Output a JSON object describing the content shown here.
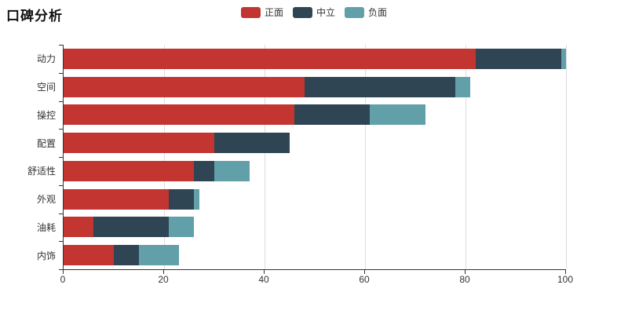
{
  "title": "口碑分析",
  "legend": [
    {
      "label": "正面",
      "color": "#c23531"
    },
    {
      "label": "中立",
      "color": "#2f4554"
    },
    {
      "label": "负面",
      "color": "#61a0a8"
    }
  ],
  "colors": {
    "positive": "#c23531",
    "neutral": "#2f4554",
    "negative": "#61a0a8",
    "axis_line": "#333333",
    "gridline": "#dcdce3",
    "background": "#ffffff"
  },
  "chart_data": {
    "type": "bar",
    "orientation": "horizontal",
    "stacked": true,
    "title": "口碑分析",
    "categories": [
      "动力",
      "空间",
      "操控",
      "配置",
      "舒适性",
      "外观",
      "油耗",
      "内饰"
    ],
    "series": [
      {
        "name": "正面",
        "color": "#c23531",
        "values": [
          82,
          48,
          46,
          30,
          26,
          21,
          6,
          10
        ]
      },
      {
        "name": "中立",
        "color": "#2f4554",
        "values": [
          17,
          30,
          15,
          15,
          4,
          5,
          15,
          5
        ]
      },
      {
        "name": "负面",
        "color": "#61a0a8",
        "values": [
          1,
          3,
          11,
          0,
          7,
          1,
          5,
          8
        ]
      }
    ],
    "xlabel": "",
    "ylabel": "",
    "xlim": [
      0,
      100
    ],
    "x_ticks": [
      0,
      20,
      40,
      60,
      80,
      100
    ],
    "grid": true,
    "legend_position": "top"
  }
}
